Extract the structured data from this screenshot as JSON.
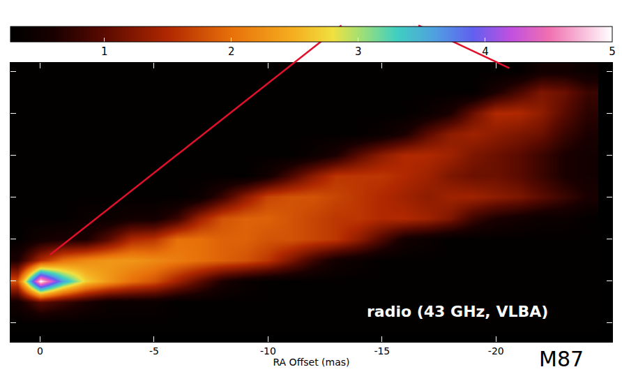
{
  "chart_data": {
    "type": "heatmap",
    "x_label": "RA Offset (mas)",
    "x": [
      1,
      0,
      -1,
      -2,
      -3,
      -4,
      -5,
      -6,
      -7,
      -8,
      -9,
      -10,
      -11,
      -12,
      -13,
      -14,
      -15,
      -16,
      -17,
      -18,
      -19,
      -20,
      -21,
      -22,
      -23,
      -24
    ],
    "y": [
      -2,
      -1,
      0,
      1,
      2,
      3,
      4,
      5,
      6,
      7,
      8,
      9,
      10
    ],
    "cells": [
      [
        0.3,
        0.3,
        0.3,
        0.3,
        0.3,
        0.3,
        0.3,
        0.3,
        0.3,
        0.3,
        0.3,
        0.3,
        0.3,
        0.3,
        0.3,
        0.3,
        0.3,
        0.3,
        0.3,
        0.3,
        0.3,
        0.3,
        0.3,
        0.3,
        0.3,
        0.3
      ],
      [
        0.5,
        1.0,
        0.8,
        0.6,
        0.4,
        0.4,
        0.4,
        0.3,
        0.3,
        0.3,
        0.3,
        0.3,
        0.3,
        0.3,
        0.3,
        0.3,
        0.3,
        0.3,
        0.3,
        0.3,
        0.3,
        0.3,
        0.3,
        0.3,
        0.3,
        0.3
      ],
      [
        1.8,
        5.0,
        3.6,
        2.7,
        2.3,
        2.0,
        1.8,
        1.4,
        1.0,
        0.6,
        0.4,
        0.3,
        0.3,
        0.3,
        0.3,
        0.3,
        0.3,
        0.3,
        0.3,
        0.3,
        0.3,
        0.3,
        0.3,
        0.3,
        0.3,
        0.3
      ],
      [
        0.6,
        1.5,
        2.0,
        2.2,
        2.3,
        2.3,
        2.2,
        2.1,
        2.0,
        1.9,
        1.8,
        1.6,
        1.2,
        0.8,
        0.5,
        0.4,
        0.3,
        0.3,
        0.3,
        0.3,
        0.3,
        0.3,
        0.3,
        0.3,
        0.3,
        0.3
      ],
      [
        0.3,
        0.5,
        0.6,
        0.6,
        1.0,
        1.5,
        1.6,
        2.0,
        2.0,
        1.9,
        1.9,
        1.8,
        1.8,
        1.7,
        1.6,
        1.3,
        0.9,
        0.5,
        0.4,
        0.3,
        0.3,
        0.3,
        0.3,
        0.3,
        0.3,
        0.3
      ],
      [
        0.3,
        0.3,
        0.3,
        0.4,
        0.4,
        0.5,
        0.5,
        0.8,
        1.4,
        1.8,
        1.9,
        1.9,
        1.8,
        1.7,
        1.6,
        1.6,
        1.5,
        1.5,
        1.4,
        1.2,
        0.8,
        0.6,
        0.5,
        0.4,
        0.4,
        0.3
      ],
      [
        0.3,
        0.3,
        0.3,
        0.3,
        0.3,
        0.3,
        0.3,
        0.3,
        0.4,
        0.8,
        1.3,
        1.7,
        1.8,
        1.8,
        1.7,
        1.6,
        1.5,
        1.4,
        1.3,
        1.4,
        1.4,
        1.3,
        1.2,
        1.0,
        0.8,
        0.6
      ],
      [
        0.3,
        0.3,
        0.3,
        0.3,
        0.3,
        0.3,
        0.3,
        0.3,
        0.3,
        0.3,
        0.3,
        0.5,
        0.9,
        1.3,
        1.6,
        1.6,
        1.6,
        1.5,
        1.4,
        1.2,
        1.1,
        1.1,
        1.0,
        0.8,
        0.6,
        0.5
      ],
      [
        0.3,
        0.3,
        0.3,
        0.3,
        0.3,
        0.3,
        0.3,
        0.3,
        0.3,
        0.3,
        0.3,
        0.3,
        0.3,
        0.4,
        0.6,
        1.0,
        1.3,
        1.5,
        1.5,
        1.4,
        1.2,
        1.1,
        1.0,
        0.8,
        0.6,
        0.5
      ],
      [
        0.3,
        0.3,
        0.3,
        0.3,
        0.3,
        0.3,
        0.3,
        0.3,
        0.3,
        0.3,
        0.3,
        0.3,
        0.3,
        0.3,
        0.3,
        0.3,
        0.4,
        0.6,
        1.0,
        1.3,
        1.4,
        1.3,
        1.2,
        1.1,
        0.8,
        0.6
      ],
      [
        0.3,
        0.3,
        0.3,
        0.3,
        0.3,
        0.3,
        0.3,
        0.3,
        0.3,
        0.3,
        0.3,
        0.3,
        0.3,
        0.3,
        0.3,
        0.3,
        0.3,
        0.3,
        0.4,
        0.6,
        1.1,
        1.5,
        1.5,
        1.3,
        1.0,
        0.7
      ],
      [
        0.3,
        0.3,
        0.3,
        0.3,
        0.3,
        0.3,
        0.3,
        0.3,
        0.3,
        0.3,
        0.3,
        0.3,
        0.3,
        0.3,
        0.3,
        0.3,
        0.3,
        0.3,
        0.3,
        0.3,
        0.3,
        0.6,
        0.9,
        1.2,
        1.1,
        0.8
      ],
      [
        0.3,
        0.3,
        0.3,
        0.3,
        0.3,
        0.3,
        0.3,
        0.3,
        0.3,
        0.3,
        0.3,
        0.3,
        0.3,
        0.3,
        0.3,
        0.3,
        0.3,
        0.3,
        0.3,
        0.3,
        0.3,
        0.3,
        0.3,
        0.5,
        0.5,
        0.4
      ]
    ],
    "xlim": [
      1.3,
      -25.1
    ],
    "ylim": [
      -2.9,
      10.4
    ],
    "xticks": [
      0,
      -5,
      -10,
      -15,
      -20
    ],
    "yticks": [
      -2,
      0,
      2,
      4,
      6,
      8,
      10
    ],
    "tick_labels": "x",
    "colorbar_range": [
      0.26,
      5
    ],
    "colorbar_ticks": [
      1,
      2,
      3,
      4,
      5
    ],
    "annotations": [
      "radio (43 GHz, VLBA)",
      "M87"
    ]
  }
}
